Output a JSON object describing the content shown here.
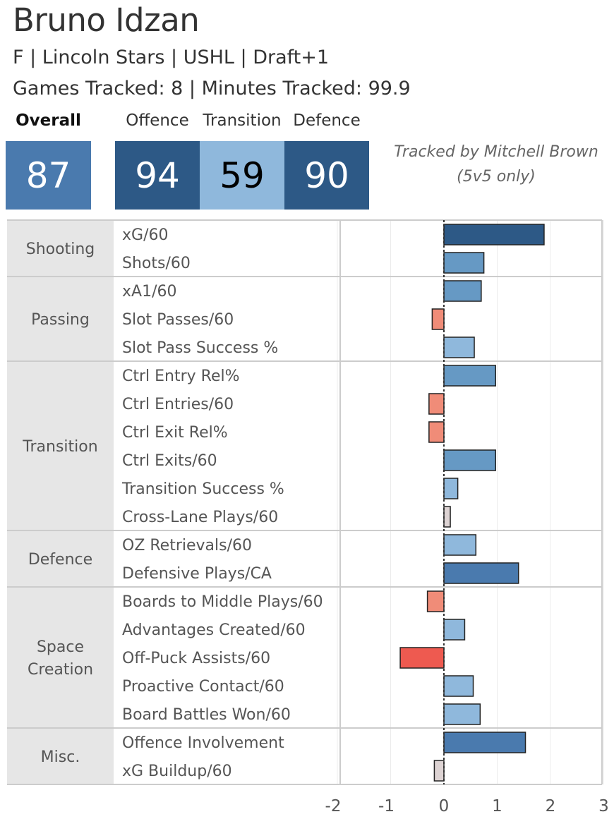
{
  "player": {
    "name": "Bruno Idzan",
    "subtitle": "F | Lincoln Stars | USHL | Draft+1",
    "tracked": "Games Tracked: 8 | Minutes Tracked: 99.9"
  },
  "ratings": {
    "overall_label": "Overall",
    "overall_value": "87",
    "offence_label": "Offence",
    "offence_value": "94",
    "transition_label": "Transition",
    "transition_value": "59",
    "defence_label": "Defence",
    "defence_value": "90"
  },
  "credit": {
    "line1": "Tracked by Mitchell Brown",
    "line2": "(5v5 only)"
  },
  "colors": {
    "dark_blue": "#2d5986",
    "mid_blue": "#4a7aae",
    "blue": "#6699c4",
    "light_blue": "#8fb8dc",
    "light_red": "#f08c78",
    "red": "#ee5a50",
    "neutral": "#ddd3d3"
  },
  "chart_data": {
    "type": "bar",
    "orientation": "horizontal",
    "xlim": [
      -2,
      3
    ],
    "xticks": [
      "-2",
      "-1",
      "0",
      "1",
      "2",
      "3"
    ],
    "grid": true,
    "groups": [
      {
        "name": "Shooting",
        "label_lines": [
          "Shooting"
        ],
        "metrics": [
          {
            "label": "xG/60",
            "value": 1.88,
            "color": "#2d5986"
          },
          {
            "label": "Shots/60",
            "value": 0.75,
            "color": "#6699c4"
          }
        ]
      },
      {
        "name": "Passing",
        "label_lines": [
          "Passing"
        ],
        "metrics": [
          {
            "label": "xA1/60",
            "value": 0.7,
            "color": "#6699c4"
          },
          {
            "label": "Slot Passes/60",
            "value": -0.22,
            "color": "#f08c78"
          },
          {
            "label": "Slot Pass Success %",
            "value": 0.57,
            "color": "#8fb8dc"
          }
        ]
      },
      {
        "name": "Transition",
        "label_lines": [
          "Transition"
        ],
        "metrics": [
          {
            "label": "Ctrl Entry Rel%",
            "value": 0.97,
            "color": "#6699c4"
          },
          {
            "label": "Ctrl Entries/60",
            "value": -0.28,
            "color": "#f08c78"
          },
          {
            "label": "Ctrl Exit Rel%",
            "value": -0.28,
            "color": "#f08c78"
          },
          {
            "label": "Ctrl Exits/60",
            "value": 0.97,
            "color": "#6699c4"
          },
          {
            "label": "Transition Success %",
            "value": 0.26,
            "color": "#8fb8dc"
          },
          {
            "label": "Cross-Lane Plays/60",
            "value": 0.12,
            "color": "#ddd3d3"
          }
        ]
      },
      {
        "name": "Defence",
        "label_lines": [
          "Defence"
        ],
        "metrics": [
          {
            "label": "OZ Retrievals/60",
            "value": 0.6,
            "color": "#8fb8dc"
          },
          {
            "label": "Defensive Plays/CA",
            "value": 1.4,
            "color": "#4a7aae"
          }
        ]
      },
      {
        "name": "Space Creation",
        "label_lines": [
          "Space",
          "Creation"
        ],
        "metrics": [
          {
            "label": "Boards to Middle Plays/60",
            "value": -0.31,
            "color": "#f08c78"
          },
          {
            "label": "Advantages Created/60",
            "value": 0.39,
            "color": "#8fb8dc"
          },
          {
            "label": "Off-Puck Assists/60",
            "value": -0.82,
            "color": "#ee5a50"
          },
          {
            "label": "Proactive Contact/60",
            "value": 0.55,
            "color": "#8fb8dc"
          },
          {
            "label": "Board Battles Won/60",
            "value": 0.68,
            "color": "#8fb8dc"
          }
        ]
      },
      {
        "name": "Misc.",
        "label_lines": [
          "Misc."
        ],
        "metrics": [
          {
            "label": "Offence Involvement",
            "value": 1.53,
            "color": "#4a7aae"
          },
          {
            "label": "xG Buildup/60",
            "value": -0.18,
            "color": "#ddd3d3"
          }
        ]
      }
    ]
  }
}
